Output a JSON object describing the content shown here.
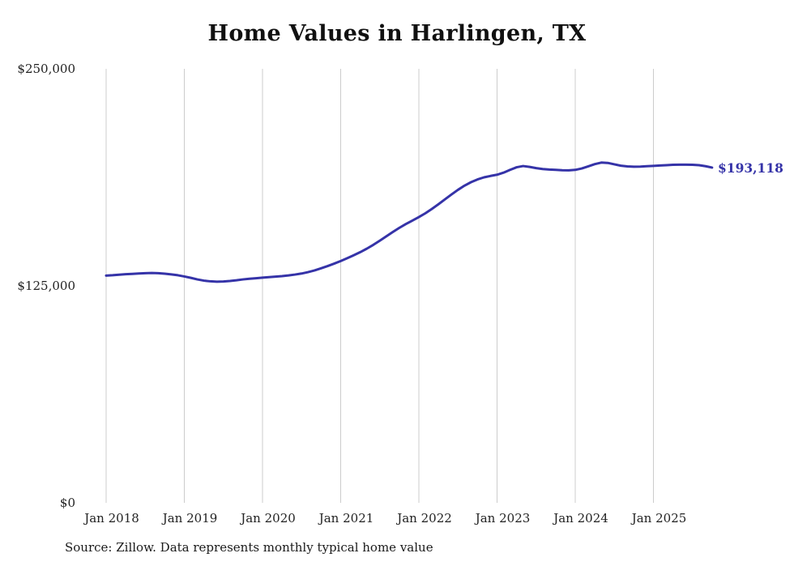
{
  "chart": {
    "title": "Home Values in Harlingen, TX",
    "source": "Source: Zillow. Data represents monthly typical home value"
  },
  "chart_data": {
    "type": "line",
    "title": "Home Values in Harlingen, TX",
    "xlabel": "",
    "ylabel": "",
    "ylim": [
      0,
      250000
    ],
    "grid": "vertical-only",
    "legend": "none",
    "line_color": "#3533a8",
    "grid_color": "#cccccc",
    "tick_text_color": "#222222",
    "y_ticks": [
      {
        "label": "$0",
        "value": 0
      },
      {
        "label": "$125,000",
        "value": 125000
      },
      {
        "label": "$250,000",
        "value": 250000
      }
    ],
    "x_ticks": [
      "Jan 2018",
      "Jan 2019",
      "Jan 2020",
      "Jan 2021",
      "Jan 2022",
      "Jan 2023",
      "Jan 2024",
      "Jan 2025"
    ],
    "x_start": "2018-01",
    "x_end": "2025-10",
    "x_interval": "monthly",
    "end_label": "$193,118",
    "latest_value": 193118,
    "series": [
      {
        "name": "Typical home value",
        "values": [
          130900,
          131100,
          131400,
          131700,
          131900,
          132100,
          132300,
          132400,
          132300,
          132000,
          131600,
          131100,
          130400,
          129600,
          128700,
          128000,
          127600,
          127400,
          127500,
          127800,
          128200,
          128700,
          129100,
          129400,
          129700,
          130000,
          130300,
          130600,
          131000,
          131500,
          132100,
          132900,
          133900,
          135100,
          136400,
          137800,
          139300,
          140900,
          142600,
          144400,
          146400,
          148600,
          151000,
          153500,
          156000,
          158400,
          160600,
          162600,
          164600,
          166800,
          169300,
          172000,
          174800,
          177600,
          180300,
          182700,
          184700,
          186300,
          187500,
          188300,
          189000,
          190200,
          191800,
          193300,
          194000,
          193500,
          192800,
          192300,
          192000,
          191800,
          191600,
          191500,
          191800,
          192600,
          193800,
          195100,
          196000,
          195800,
          195000,
          194200,
          193800,
          193600,
          193700,
          193900,
          194100,
          194300,
          194500,
          194700,
          194800,
          194800,
          194700,
          194500,
          193900,
          193118
        ]
      }
    ]
  }
}
